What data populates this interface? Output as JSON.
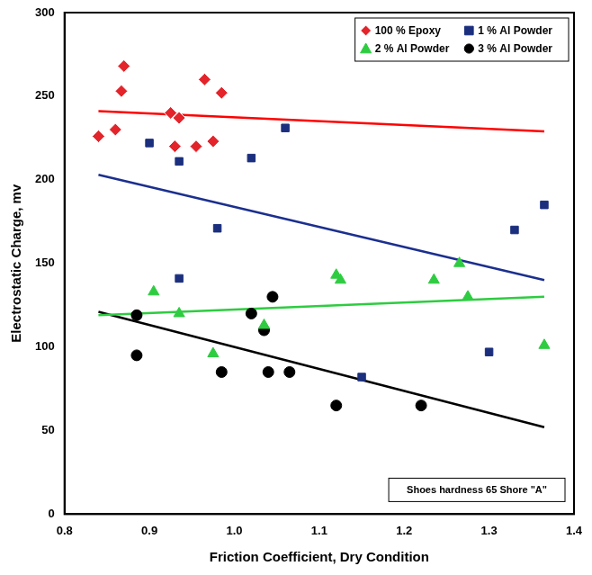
{
  "chart_data": {
    "type": "scatter",
    "x_label": "Friction Coefficient, Dry Condition",
    "y_label": "Electrostatic Charge, mv",
    "annotation": "Shoes hardness 65 Shore \"A\"",
    "xlim": [
      0.8,
      1.4
    ],
    "xticks": [
      0.8,
      0.9,
      {
        "value": 1,
        "label": "1.0"
      },
      1.1,
      1.2,
      1.3,
      1.4
    ],
    "ylim": [
      0,
      300
    ],
    "yticks": [
      0,
      50,
      100,
      150,
      200,
      250,
      300
    ],
    "grid": false,
    "legend": "top right",
    "series": [
      {
        "name": "100 % Epoxy",
        "color": "#e3242b",
        "marker": "diamond",
        "x": [
          0.84,
          0.86,
          0.867,
          0.87,
          0.925,
          0.93,
          0.935,
          0.955,
          0.965,
          0.975,
          0.985
        ],
        "values": [
          226,
          230,
          253,
          268,
          240,
          220,
          237,
          220,
          260,
          223,
          252
        ],
        "trend": {
          "type": "line",
          "color": "#ff0000",
          "x": [
            0.84,
            1.365
          ],
          "values": [
            241,
            229
          ]
        }
      },
      {
        "name": "1 % Al Powder",
        "color": "#1b2f7e",
        "marker": "square",
        "x": [
          0.9,
          0.935,
          0.935,
          0.98,
          1.02,
          1.06,
          1.15,
          1.3,
          1.33,
          1.365
        ],
        "values": [
          222,
          211,
          141,
          171,
          213,
          231,
          82,
          97,
          170,
          185
        ],
        "trend": {
          "type": "line",
          "color": "#1b2f8f",
          "x": [
            0.84,
            1.365
          ],
          "values": [
            203,
            140
          ]
        }
      },
      {
        "name": "2 % Al Powder",
        "color": "#2ecc40",
        "marker": "triangle",
        "x": [
          0.905,
          0.935,
          0.975,
          1.035,
          1.12,
          1.125,
          1.235,
          1.265,
          1.275,
          1.365
        ],
        "values": [
          133,
          120,
          96,
          113,
          143,
          140,
          140,
          150,
          130,
          101
        ],
        "trend": {
          "type": "line",
          "color": "#2ecc40",
          "x": [
            0.84,
            1.365
          ],
          "values": [
            119,
            130
          ]
        }
      },
      {
        "name": "3 % Al Powder",
        "color": "#000000",
        "marker": "circle",
        "x": [
          0.885,
          0.885,
          0.985,
          1.02,
          1.035,
          1.04,
          1.045,
          1.065,
          1.12,
          1.22
        ],
        "values": [
          119,
          95,
          85,
          120,
          110,
          85,
          130,
          85,
          65,
          65
        ],
        "trend": {
          "type": "line",
          "color": "#000000",
          "x": [
            0.84,
            1.365
          ],
          "values": [
            121,
            52
          ]
        }
      }
    ]
  }
}
